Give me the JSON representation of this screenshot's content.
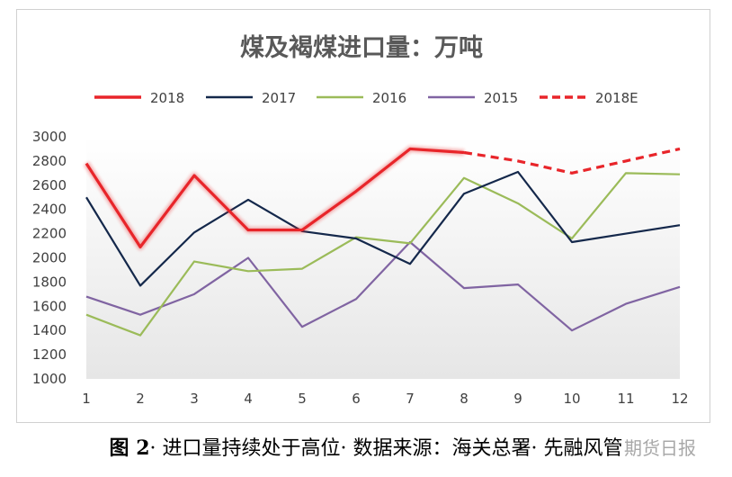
{
  "caption": {
    "fig": "图 2",
    "text": "· 进口量持续处于高位· 数据来源：海关总署· 先融风管"
  },
  "watermark": "期货日报",
  "colors": {
    "s2018": "#e8252a",
    "s2017": "#14284b",
    "s2016": "#9bbb59",
    "s2015": "#8064a2",
    "s2018E": "#e8252a"
  },
  "chart_data": {
    "type": "line",
    "title": "煤及褐煤进口量：万吨",
    "categories": [
      "1",
      "2",
      "3",
      "4",
      "5",
      "6",
      "7",
      "8",
      "9",
      "10",
      "11",
      "12"
    ],
    "ylim": [
      1000,
      3000
    ],
    "yticks": [
      "3000",
      "2800",
      "2600",
      "2400",
      "2200",
      "2000",
      "1800",
      "1600",
      "1400",
      "1200",
      "1000"
    ],
    "grid": false,
    "legend": "top",
    "series": [
      {
        "name": "2018",
        "style": "solid",
        "values": [
          2780,
          2090,
          2680,
          2230,
          2230,
          2550,
          2900,
          2870,
          null,
          null,
          null,
          null
        ]
      },
      {
        "name": "2017",
        "style": "solid",
        "values": [
          2500,
          1770,
          2210,
          2480,
          2220,
          2160,
          1950,
          2530,
          2710,
          2130,
          2200,
          2270
        ]
      },
      {
        "name": "2016",
        "style": "solid",
        "values": [
          1530,
          1360,
          1970,
          1890,
          1910,
          2170,
          2120,
          2660,
          2450,
          2160,
          2700,
          2690
        ]
      },
      {
        "name": "2015",
        "style": "solid",
        "values": [
          1680,
          1530,
          1700,
          2000,
          1430,
          1660,
          2130,
          1750,
          1780,
          1400,
          1620,
          1760
        ]
      },
      {
        "name": "2018E",
        "style": "dashed",
        "values": [
          null,
          null,
          null,
          null,
          null,
          null,
          null,
          2870,
          2800,
          2700,
          2800,
          2900
        ]
      }
    ]
  }
}
